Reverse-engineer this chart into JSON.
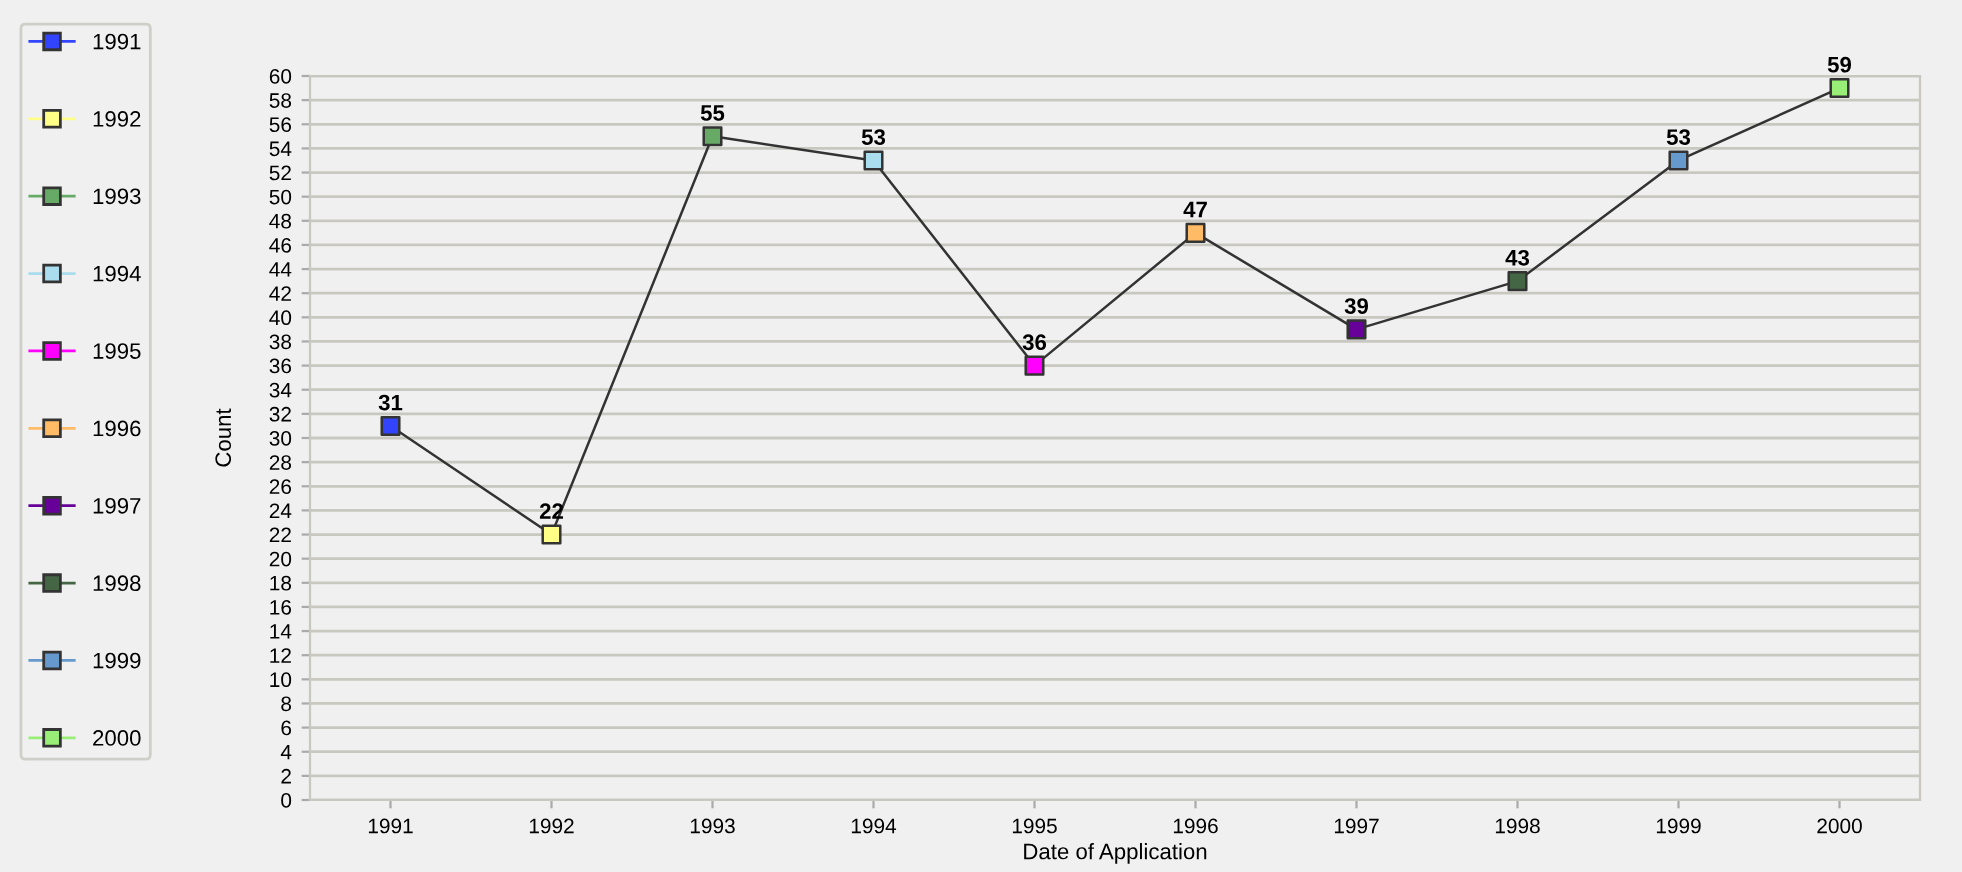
{
  "chart_data": {
    "type": "line",
    "xlabel": "Date of Application",
    "ylabel": "Count",
    "categories": [
      "1991",
      "1992",
      "1993",
      "1994",
      "1995",
      "1996",
      "1997",
      "1998",
      "1999",
      "2000"
    ],
    "ylim": [
      0,
      60
    ],
    "yticks": [
      0,
      2,
      4,
      6,
      8,
      10,
      12,
      14,
      16,
      18,
      20,
      22,
      24,
      26,
      28,
      30,
      32,
      34,
      36,
      38,
      40,
      42,
      44,
      46,
      48,
      50,
      52,
      54,
      56,
      58,
      60
    ],
    "grid": "y",
    "legend": "left",
    "marker": "square",
    "data_labels": true,
    "series": [
      {
        "color": "#333333",
        "marker": "none",
        "values": [
          31,
          22,
          55,
          53,
          36,
          47,
          39,
          43,
          53,
          59
        ],
        "value_labels": [
          null,
          null,
          null,
          null,
          null,
          null,
          null,
          null,
          null,
          null
        ]
      },
      {
        "type": "scatter",
        "name": "1991",
        "color": "#3344ff",
        "values": [
          31,
          null,
          null,
          null,
          null,
          null,
          null,
          null,
          null,
          null
        ]
      },
      {
        "type": "scatter",
        "name": "1992",
        "color": "#ffff88",
        "values": [
          null,
          22,
          null,
          null,
          null,
          null,
          null,
          null,
          null,
          null
        ]
      },
      {
        "type": "scatter",
        "name": "1993",
        "color": "#66aa66",
        "values": [
          null,
          null,
          55,
          null,
          null,
          null,
          null,
          null,
          null,
          null
        ]
      },
      {
        "type": "scatter",
        "name": "1994",
        "color": "#aaddee",
        "values": [
          null,
          null,
          null,
          53,
          null,
          null,
          null,
          null,
          null,
          null
        ]
      },
      {
        "type": "scatter",
        "name": "1995",
        "color": "#ff00ff",
        "values": [
          null,
          null,
          null,
          null,
          36,
          null,
          null,
          null,
          null,
          null
        ]
      },
      {
        "type": "scatter",
        "name": "1996",
        "color": "#ffbb66",
        "values": [
          null,
          null,
          null,
          null,
          null,
          47,
          null,
          null,
          null,
          null
        ]
      },
      {
        "type": "scatter",
        "name": "1997",
        "color": "#660099",
        "values": [
          null,
          null,
          null,
          null,
          null,
          null,
          39,
          null,
          null,
          null
        ]
      },
      {
        "type": "scatter",
        "name": "1998",
        "color": "#446644",
        "values": [
          null,
          null,
          null,
          null,
          null,
          null,
          null,
          43,
          null,
          null
        ]
      },
      {
        "type": "scatter",
        "name": "1999",
        "color": "#6699cc",
        "values": [
          null,
          null,
          null,
          null,
          null,
          null,
          null,
          null,
          53,
          null
        ]
      },
      {
        "type": "scatter",
        "name": "2000",
        "color": "#99ee77",
        "values": [
          null,
          null,
          null,
          null,
          null,
          null,
          null,
          null,
          null,
          59
        ]
      }
    ]
  }
}
